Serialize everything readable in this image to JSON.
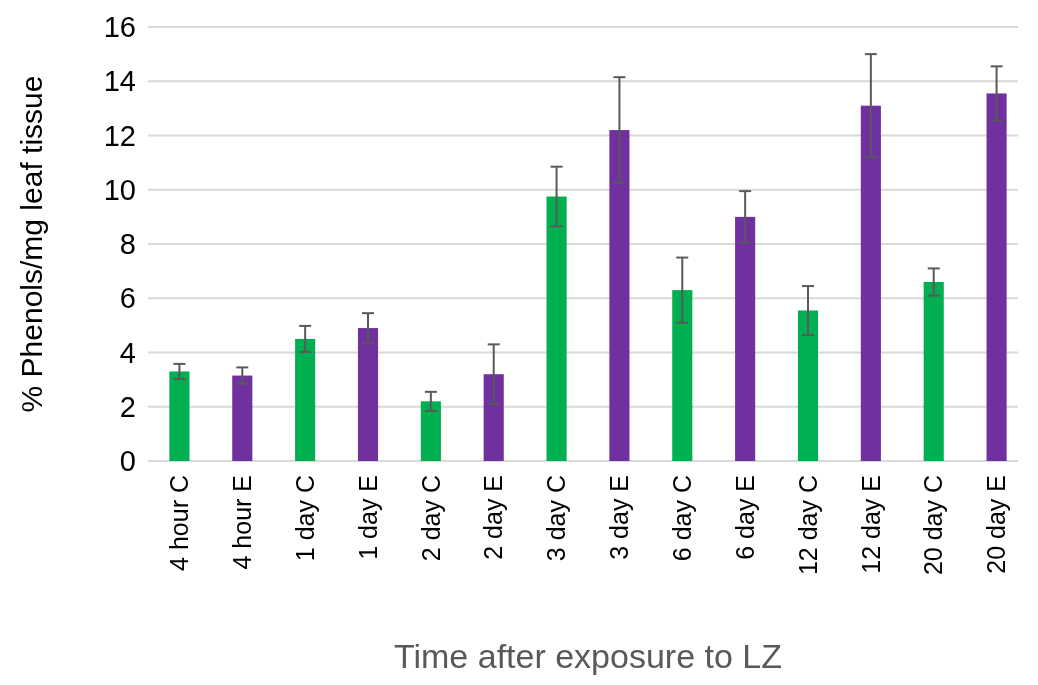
{
  "chart_data": {
    "type": "bar",
    "xlabel": "Time after exposure to LZ",
    "ylabel": "% Phenols/mg leaf tissue",
    "categories": [
      "4 hour C",
      "4 hour E",
      "1 day C",
      "1 day E",
      "2 day C",
      "2 day E",
      "3 day C",
      "3 day E",
      "6 day C",
      "6 day E",
      "12 day C",
      "12 day E",
      "20 day C",
      "20 day E"
    ],
    "values": [
      3.3,
      3.15,
      4.5,
      4.9,
      2.2,
      3.2,
      9.75,
      12.2,
      6.3,
      9.0,
      5.55,
      13.1,
      6.6,
      13.55
    ],
    "errors": [
      0.28,
      0.3,
      0.48,
      0.55,
      0.35,
      1.1,
      1.1,
      1.95,
      1.2,
      0.95,
      0.9,
      1.9,
      0.5,
      1.0
    ],
    "colors": [
      "#00b050",
      "#7030a0",
      "#00b050",
      "#7030a0",
      "#00b050",
      "#7030a0",
      "#00b050",
      "#7030a0",
      "#00b050",
      "#7030a0",
      "#00b050",
      "#7030a0",
      "#00b050",
      "#7030a0"
    ],
    "ylim": [
      0,
      16
    ],
    "yticks": [
      0,
      2,
      4,
      6,
      8,
      10,
      12,
      14,
      16
    ],
    "grid": "y"
  }
}
